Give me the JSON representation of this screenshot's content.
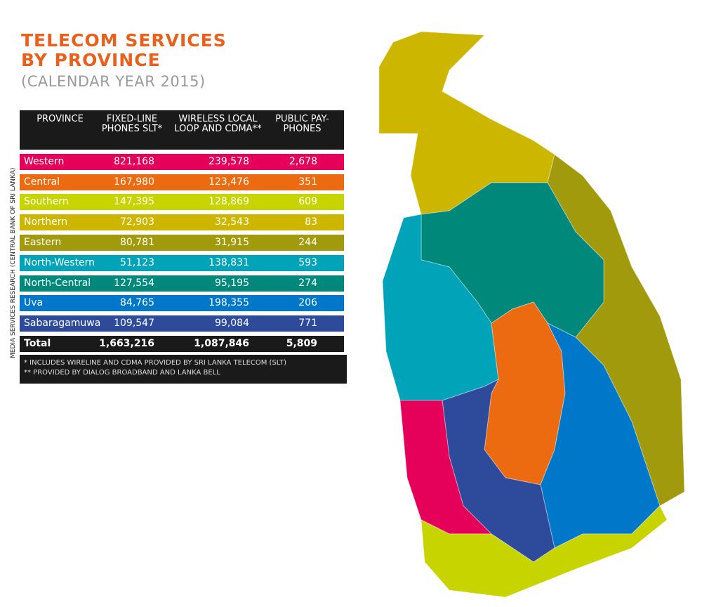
{
  "header": {
    "title": [
      "TELECOM SERVICES",
      "BY PROVINCE"
    ],
    "subtitle": "(CALENDAR YEAR 2015)"
  },
  "source": "MEDIA SERVICES RESEARCH (CENTRAL BANK OF SRI LANKA)",
  "table": {
    "columns": [
      "PROVINCE",
      "FIXED-LINE PHONES SLT*",
      "WIRELESS LOCAL LOOP AND CDMA**",
      "PUBLIC PAY-PHONES"
    ],
    "rows": [
      {
        "province": "Western",
        "fixed_line": "821,168",
        "wireless": "239,578",
        "payphones": "2,678",
        "color": "#e5005a"
      },
      {
        "province": "Central",
        "fixed_line": "167,980",
        "wireless": "123,476",
        "payphones": "351",
        "color": "#ec6a10"
      },
      {
        "province": "Southern",
        "fixed_line": "147,395",
        "wireless": "128,869",
        "payphones": "609",
        "color": "#c7d400"
      },
      {
        "province": "Northern",
        "fixed_line": "72,903",
        "wireless": "32,543",
        "payphones": "83",
        "color": "#cdb600"
      },
      {
        "province": "Eastern",
        "fixed_line": "80,781",
        "wireless": "31,915",
        "payphones": "244",
        "color": "#a09a0c"
      },
      {
        "province": "North-Western",
        "fixed_line": "51,123",
        "wireless": "138,831",
        "payphones": "593",
        "color": "#00a3b8"
      },
      {
        "province": "North-Central",
        "fixed_line": "127,554",
        "wireless": "95,195",
        "payphones": "274",
        "color": "#00897b"
      },
      {
        "province": "Uva",
        "fixed_line": "84,765",
        "wireless": "198,355",
        "payphones": "206",
        "color": "#0077c8"
      },
      {
        "province": "Sabaragamuwa",
        "fixed_line": "109,547",
        "wireless": "99,084",
        "payphones": "771",
        "color": "#2e4a9a"
      }
    ],
    "total": {
      "province": "Total",
      "fixed_line": "1,663,216",
      "wireless": "1,087,846",
      "payphones": "5,809"
    }
  },
  "footnotes": [
    "*  INCLUDES WIRELINE AND CDMA PROVIDED BY SRI LANKA TELECOM (SLT)",
    "** PROVIDED BY DIALOG BROADBAND AND LANKA BELL"
  ]
}
